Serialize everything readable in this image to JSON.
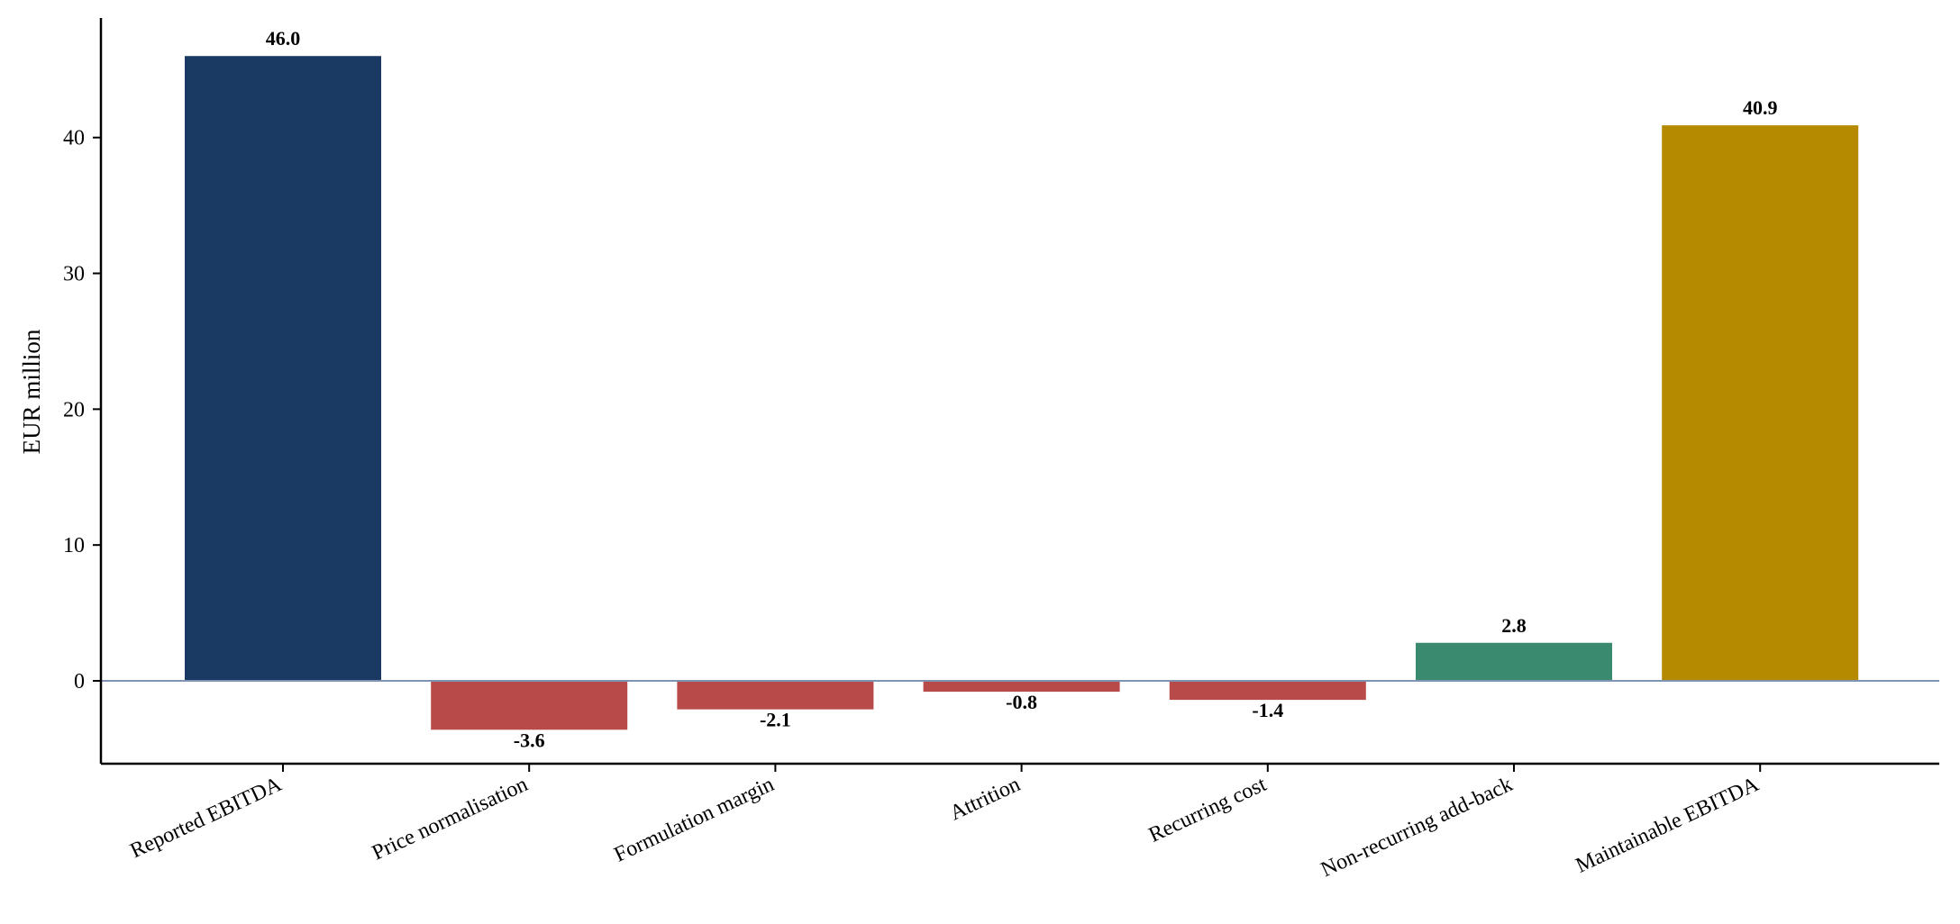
{
  "chart_data": {
    "type": "bar",
    "title": "",
    "xlabel": "",
    "ylabel": "EUR million",
    "ylim": [
      -6.1,
      48.8
    ],
    "yticks": [
      0,
      10,
      20,
      30,
      40
    ],
    "grid": false,
    "categories": [
      "Reported EBITDA",
      "Price normalisation",
      "Formulation margin",
      "Attrition",
      "Recurring cost",
      "Non-recurring add-back",
      "Maintainable EBITDA"
    ],
    "values": [
      46.0,
      -3.6,
      -2.1,
      -0.8,
      -1.4,
      2.8,
      40.9
    ],
    "value_labels": [
      "46.0",
      "-3.6",
      "-2.1",
      "-0.8",
      "-1.4",
      "2.8",
      "40.9"
    ],
    "bar_colors": [
      "#1b3a63",
      "#b94a4a",
      "#b94a4a",
      "#b94a4a",
      "#b94a4a",
      "#3a8a70",
      "#b58900"
    ],
    "zero_line_color": "#7f93b3",
    "axis_color": "#000000"
  }
}
